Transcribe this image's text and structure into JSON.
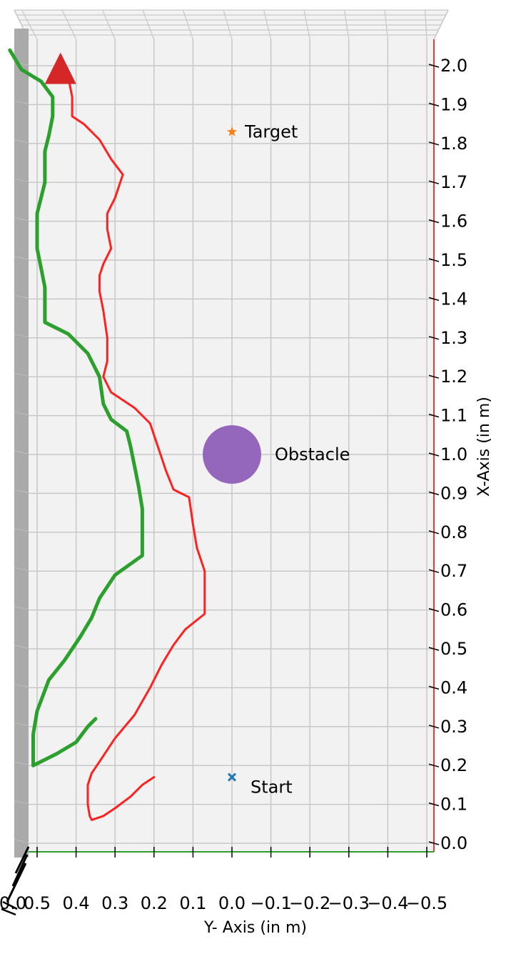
{
  "chart_data": {
    "type": "line",
    "title": "",
    "xlabel": "Y- Axis (in m)",
    "ylabel": "X-Axis (in m)",
    "x_axis": {
      "reversed": true,
      "lim": [
        0.5,
        -0.5
      ],
      "ticks": [
        0.5,
        0.4,
        0.3,
        0.2,
        0.1,
        0.0,
        -0.1,
        -0.2,
        -0.3,
        -0.4,
        -0.5
      ],
      "tick_labels": [
        "0.5",
        "0.4",
        "0.3",
        "0.2",
        "0.1",
        "0.0",
        "−0.1",
        "−0.2",
        "−0.3",
        "−0.4",
        "−0.5"
      ]
    },
    "y_axis": {
      "lim": [
        0.0,
        2.0
      ],
      "ticks": [
        0.0,
        0.1,
        0.2,
        0.3,
        0.4,
        0.5,
        0.6,
        0.7,
        0.8,
        0.9,
        1.0,
        1.1,
        1.2,
        1.3,
        1.4,
        1.5,
        1.6,
        1.7,
        1.8,
        1.9,
        2.0
      ],
      "tick_labels": [
        "0.0",
        "0.1",
        "0.2",
        "0.3",
        "0.4",
        "0.5",
        "0.6",
        "0.7",
        "0.8",
        "0.9",
        "1.0",
        "1.1",
        "1.2",
        "1.3",
        "1.4",
        "1.5",
        "1.6",
        "1.7",
        "1.8",
        "1.9",
        "2.0"
      ],
      "position": "right"
    },
    "cut_off_label": "0.0",
    "grid": true,
    "colors": {
      "pane": "#f2f2f2",
      "grid": "#c8c8c8",
      "side_wall": "#aaaaaa",
      "red_path": "#ff2020",
      "green_path": "#2ca02c",
      "obstacle": "#9467bd",
      "start": "#1f77b4",
      "target": "#ff7f0e",
      "goal_marker": "#d62728",
      "y_axis_line": "#e00000",
      "x_axis_line": "#2ca02c"
    },
    "series": [
      {
        "color": "red",
        "points": [
          [
            0.2,
            0.17
          ],
          [
            0.23,
            0.15
          ],
          [
            0.26,
            0.12
          ],
          [
            0.3,
            0.09
          ],
          [
            0.33,
            0.07
          ],
          [
            0.36,
            0.06
          ],
          [
            0.365,
            0.07
          ],
          [
            0.37,
            0.1
          ],
          [
            0.37,
            0.15
          ],
          [
            0.36,
            0.18
          ],
          [
            0.34,
            0.21
          ],
          [
            0.3,
            0.27
          ],
          [
            0.25,
            0.33
          ],
          [
            0.21,
            0.4
          ],
          [
            0.18,
            0.46
          ],
          [
            0.15,
            0.51
          ],
          [
            0.12,
            0.55
          ],
          [
            0.07,
            0.59
          ],
          [
            0.07,
            0.64
          ],
          [
            0.07,
            0.7
          ],
          [
            0.09,
            0.76
          ],
          [
            0.1,
            0.82
          ],
          [
            0.11,
            0.89
          ],
          [
            0.15,
            0.91
          ],
          [
            0.17,
            0.96
          ],
          [
            0.19,
            1.02
          ],
          [
            0.21,
            1.08
          ],
          [
            0.25,
            1.12
          ],
          [
            0.31,
            1.16
          ],
          [
            0.33,
            1.2
          ],
          [
            0.32,
            1.24
          ],
          [
            0.32,
            1.3
          ],
          [
            0.33,
            1.37
          ],
          [
            0.34,
            1.42
          ],
          [
            0.34,
            1.46
          ],
          [
            0.33,
            1.49
          ],
          [
            0.31,
            1.53
          ],
          [
            0.32,
            1.58
          ],
          [
            0.32,
            1.62
          ],
          [
            0.3,
            1.66
          ],
          [
            0.28,
            1.72
          ],
          [
            0.31,
            1.76
          ],
          [
            0.34,
            1.81
          ],
          [
            0.38,
            1.85
          ],
          [
            0.41,
            1.87
          ],
          [
            0.41,
            1.92
          ],
          [
            0.42,
            1.97
          ],
          [
            0.44,
            1.99
          ]
        ]
      },
      {
        "color": "green",
        "points": [
          [
            0.35,
            0.32
          ],
          [
            0.37,
            0.3
          ],
          [
            0.4,
            0.26
          ],
          [
            0.45,
            0.23
          ],
          [
            0.51,
            0.2
          ],
          [
            0.51,
            0.23
          ],
          [
            0.51,
            0.28
          ],
          [
            0.5,
            0.34
          ],
          [
            0.47,
            0.42
          ],
          [
            0.43,
            0.47
          ],
          [
            0.39,
            0.53
          ],
          [
            0.36,
            0.58
          ],
          [
            0.34,
            0.63
          ],
          [
            0.3,
            0.69
          ],
          [
            0.23,
            0.74
          ],
          [
            0.23,
            0.8
          ],
          [
            0.23,
            0.86
          ],
          [
            0.24,
            0.92
          ],
          [
            0.25,
            0.97
          ],
          [
            0.26,
            1.02
          ],
          [
            0.27,
            1.06
          ],
          [
            0.31,
            1.09
          ],
          [
            0.33,
            1.13
          ],
          [
            0.34,
            1.2
          ],
          [
            0.37,
            1.26
          ],
          [
            0.42,
            1.31
          ],
          [
            0.48,
            1.34
          ],
          [
            0.48,
            1.39
          ],
          [
            0.48,
            1.43
          ],
          [
            0.49,
            1.48
          ],
          [
            0.5,
            1.53
          ],
          [
            0.5,
            1.58
          ],
          [
            0.5,
            1.62
          ],
          [
            0.49,
            1.66
          ],
          [
            0.48,
            1.7
          ],
          [
            0.48,
            1.74
          ],
          [
            0.48,
            1.78
          ],
          [
            0.47,
            1.82
          ],
          [
            0.46,
            1.87
          ],
          [
            0.46,
            1.92
          ],
          [
            0.49,
            1.96
          ],
          [
            0.54,
            1.99
          ],
          [
            0.57,
            2.04
          ]
        ]
      }
    ],
    "markers": {
      "start": {
        "x": 0.0,
        "y": 0.17,
        "label": "Start",
        "shape": "x"
      },
      "target": {
        "x": 0.0,
        "y": 1.83,
        "label": "Target",
        "shape": "star"
      },
      "obstacle": {
        "x": 0.0,
        "y": 1.0,
        "radius": 0.075,
        "label": "Obstacle",
        "shape": "circle"
      },
      "goal": {
        "x": 0.44,
        "y": 1.99,
        "shape": "triangle"
      }
    }
  }
}
